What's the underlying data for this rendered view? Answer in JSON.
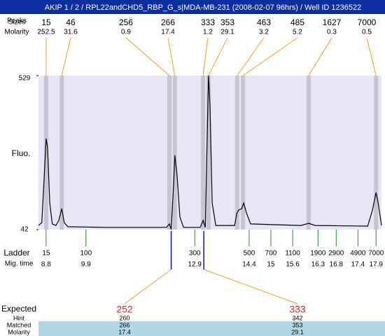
{
  "chart_data": {
    "type": "line",
    "title": "AKIP 1 / 2 / RPL22andCHD5_RBP_G_s|MDA-MB-231 (2008-02-07 96hrs) / Well ID 1236522",
    "y_label": "Fluo.",
    "ylim": [
      42,
      529
    ],
    "yticks": [
      42,
      529
    ],
    "xlim": [
      8.59,
      18.05
    ],
    "color": "#000000",
    "x": [
      8.59,
      8.68,
      8.74,
      8.8,
      8.84,
      8.9,
      8.97,
      9.07,
      9.15,
      9.23,
      9.3,
      9.4,
      10.42,
      12.12,
      12.2,
      12.25,
      12.32,
      12.35,
      12.41,
      12.49,
      12.59,
      13.05,
      13.13,
      13.19,
      13.24,
      13.28,
      13.32,
      13.38,
      13.48,
      14.0,
      14.06,
      14.11,
      14.19,
      14.25,
      14.33,
      14.44,
      15.83,
      16.04,
      16.22,
      17.67,
      17.8,
      17.9,
      17.96,
      18.05
    ],
    "values": [
      55,
      64,
      193,
      330,
      303,
      126,
      60,
      55,
      71,
      108,
      64,
      51,
      49,
      49,
      60,
      42,
      193,
      277,
      215,
      82,
      49,
      49,
      71,
      49,
      325,
      529,
      436,
      126,
      55,
      55,
      93,
      104,
      108,
      126,
      93,
      60,
      55,
      62,
      55,
      53,
      104,
      159,
      126,
      55
    ],
    "peak_labels": [
      "Peaks",
      "Sizes",
      "Molarity"
    ],
    "peaks": {
      "sizes": [
        15,
        46,
        256,
        266,
        333,
        353,
        463,
        485,
        1627,
        7000
      ],
      "molarity": [
        252.5,
        31.6,
        0.9,
        17.4,
        1.2,
        29.1,
        3.2,
        5.2,
        0.3,
        0.5
      ],
      "times": [
        8.8,
        9.23,
        12.2,
        12.35,
        13.13,
        13.28,
        14.07,
        14.23,
        16.04,
        17.9
      ]
    },
    "ladder_label": "Ladder",
    "mig_time_label": "Mig. time",
    "ladder": {
      "sizes": [
        15,
        100,
        300,
        500,
        700,
        1100,
        1900,
        2900,
        4900,
        7000
      ],
      "times": [
        8.8,
        9.9,
        12.9,
        14.4,
        15,
        15.6,
        16.3,
        16.8,
        17.4,
        17.9
      ]
    },
    "expected_labels": [
      "Expected",
      "Hint",
      "Matched",
      "Molarity"
    ],
    "expected": {
      "expected": [
        252,
        333
      ],
      "hint": [
        260,
        342
      ],
      "matched": [
        266,
        353
      ],
      "molarity": [
        17.4,
        29.1
      ],
      "times": [
        12.25,
        13.15
      ]
    }
  }
}
